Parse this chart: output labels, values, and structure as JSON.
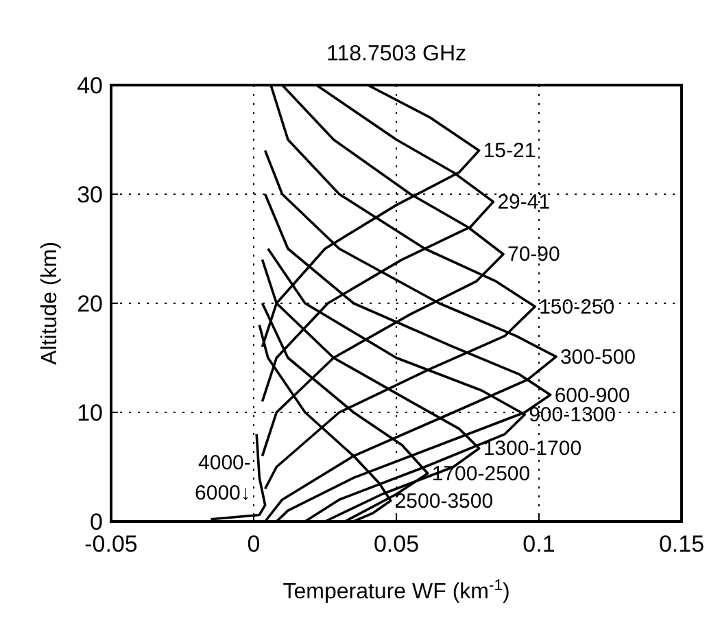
{
  "chart_data": {
    "type": "line",
    "title": "118.7503 GHz",
    "xlabel": "Temperature WF (km$^{-1}$)",
    "ylabel": "Altitude (km)",
    "xlim": [
      -0.05,
      0.15
    ],
    "xticks": [
      -0.05,
      0,
      0.05,
      0.1,
      0.15
    ],
    "ylim": [
      0,
      40
    ],
    "yticks": [
      0,
      10,
      20,
      30,
      40
    ],
    "grid": true,
    "marker": "none",
    "line_style": "solid",
    "series": [
      {
        "name": "15-21",
        "color": "#000000",
        "x": [
          0.04,
          0.062,
          0.079,
          0.072,
          0.05,
          0.025,
          0.008,
          0.003
        ],
        "values": [
          40,
          37,
          34,
          32,
          29,
          25,
          20,
          16
        ]
      },
      {
        "name": "29-41",
        "color": "#000000",
        "x": [
          0.022,
          0.05,
          0.07,
          0.084,
          0.076,
          0.052,
          0.026,
          0.008,
          0.003
        ],
        "values": [
          40,
          35,
          32,
          29.3,
          27,
          24,
          20,
          15,
          11
        ]
      },
      {
        "name": "70-90",
        "color": "#000000",
        "x": [
          0.01,
          0.028,
          0.055,
          0.075,
          0.0875,
          0.078,
          0.055,
          0.028,
          0.008,
          0.003
        ],
        "values": [
          40,
          35,
          30,
          27,
          24.5,
          22,
          19,
          15,
          10,
          6
        ]
      },
      {
        "name": "150-250",
        "color": "#000000",
        "x": [
          0.006,
          0.012,
          0.03,
          0.06,
          0.085,
          0.0986,
          0.088,
          0.062,
          0.03,
          0.008,
          0.004
        ],
        "values": [
          40,
          35,
          30,
          25,
          22,
          19.7,
          17,
          14,
          10,
          5,
          3
        ]
      },
      {
        "name": "300-500",
        "color": "#000000",
        "x": [
          0.004,
          0.01,
          0.03,
          0.065,
          0.092,
          0.106,
          0.096,
          0.07,
          0.035,
          0.01,
          0.004
        ],
        "values": [
          34,
          30,
          25,
          20,
          17,
          15.1,
          13,
          10,
          6,
          2,
          0
        ]
      },
      {
        "name": "600-900",
        "color": "#000000",
        "x": [
          0.004,
          0.012,
          0.035,
          0.07,
          0.093,
          0.104,
          0.095,
          0.065,
          0.035,
          0.012,
          0.008
        ],
        "values": [
          30,
          25,
          20,
          16,
          13.5,
          11.6,
          10,
          7,
          4,
          1,
          0
        ]
      },
      {
        "name": "900-1300",
        "color": "#000000",
        "x": [
          0.005,
          0.018,
          0.05,
          0.08,
          0.095,
          0.088,
          0.06,
          0.03,
          0.018
        ],
        "values": [
          25,
          20,
          15,
          12,
          9.8,
          8,
          5,
          2,
          0
        ]
      },
      {
        "name": "1300-1700",
        "color": "#000000",
        "x": [
          0.003,
          0.008,
          0.028,
          0.055,
          0.072,
          0.079,
          0.07,
          0.045,
          0.025
        ],
        "values": [
          24,
          20,
          15,
          11,
          8.5,
          6.7,
          5,
          2.5,
          0
        ]
      },
      {
        "name": "1700-2500",
        "color": "#000000",
        "x": [
          0.003,
          0.012,
          0.035,
          0.052,
          0.061,
          0.05,
          0.032
        ],
        "values": [
          20,
          15,
          10,
          7,
          4.4,
          2.5,
          0
        ]
      },
      {
        "name": "2500-3500",
        "color": "#000000",
        "x": [
          0.002,
          0.005,
          0.018,
          0.035,
          0.044,
          0.048,
          0.042,
          0.035
        ],
        "values": [
          18,
          15,
          10,
          6,
          3.5,
          1.9,
          0.8,
          0
        ]
      },
      {
        "name": "4000-6000↓",
        "color": "#000000",
        "x": [
          0.001,
          0.002,
          0.004,
          0.002,
          -0.015
        ],
        "values": [
          8,
          4,
          1.5,
          0.6,
          0.2
        ]
      }
    ]
  }
}
